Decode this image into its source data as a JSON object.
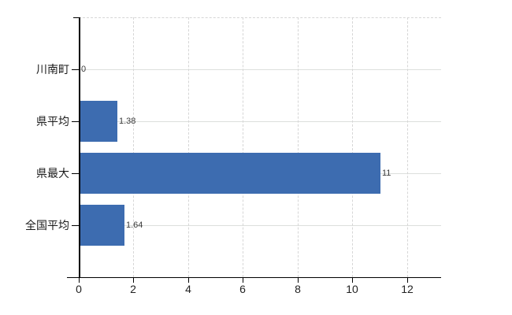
{
  "chart_data": {
    "type": "bar",
    "orientation": "horizontal",
    "title": "",
    "xlabel": "",
    "ylabel": "",
    "categories": [
      "川南町",
      "県平均",
      "県最大",
      "全国平均"
    ],
    "values": [
      0,
      1.38,
      11,
      1.64
    ],
    "value_labels": [
      "0",
      "1.38",
      "11",
      "1.64"
    ],
    "x_tick_values": [
      0,
      2,
      4,
      6,
      8,
      10,
      12
    ],
    "x_tick_labels": [
      "0",
      "2",
      "4",
      "6",
      "8",
      "10",
      "12"
    ],
    "xlim": [
      0,
      13.24
    ],
    "legend": null,
    "grid": "vertical dashed gridlines at x ticks, solid horizontal gridlines at category centers, dashed top border",
    "colors": {
      "bar": "#3d6cb0",
      "axis": "#000000",
      "gridline_h": "#dcdfdc",
      "gridline_v": "#d6d6d6",
      "value_label": "#3a3a3a",
      "background": "#ffffff"
    }
  }
}
